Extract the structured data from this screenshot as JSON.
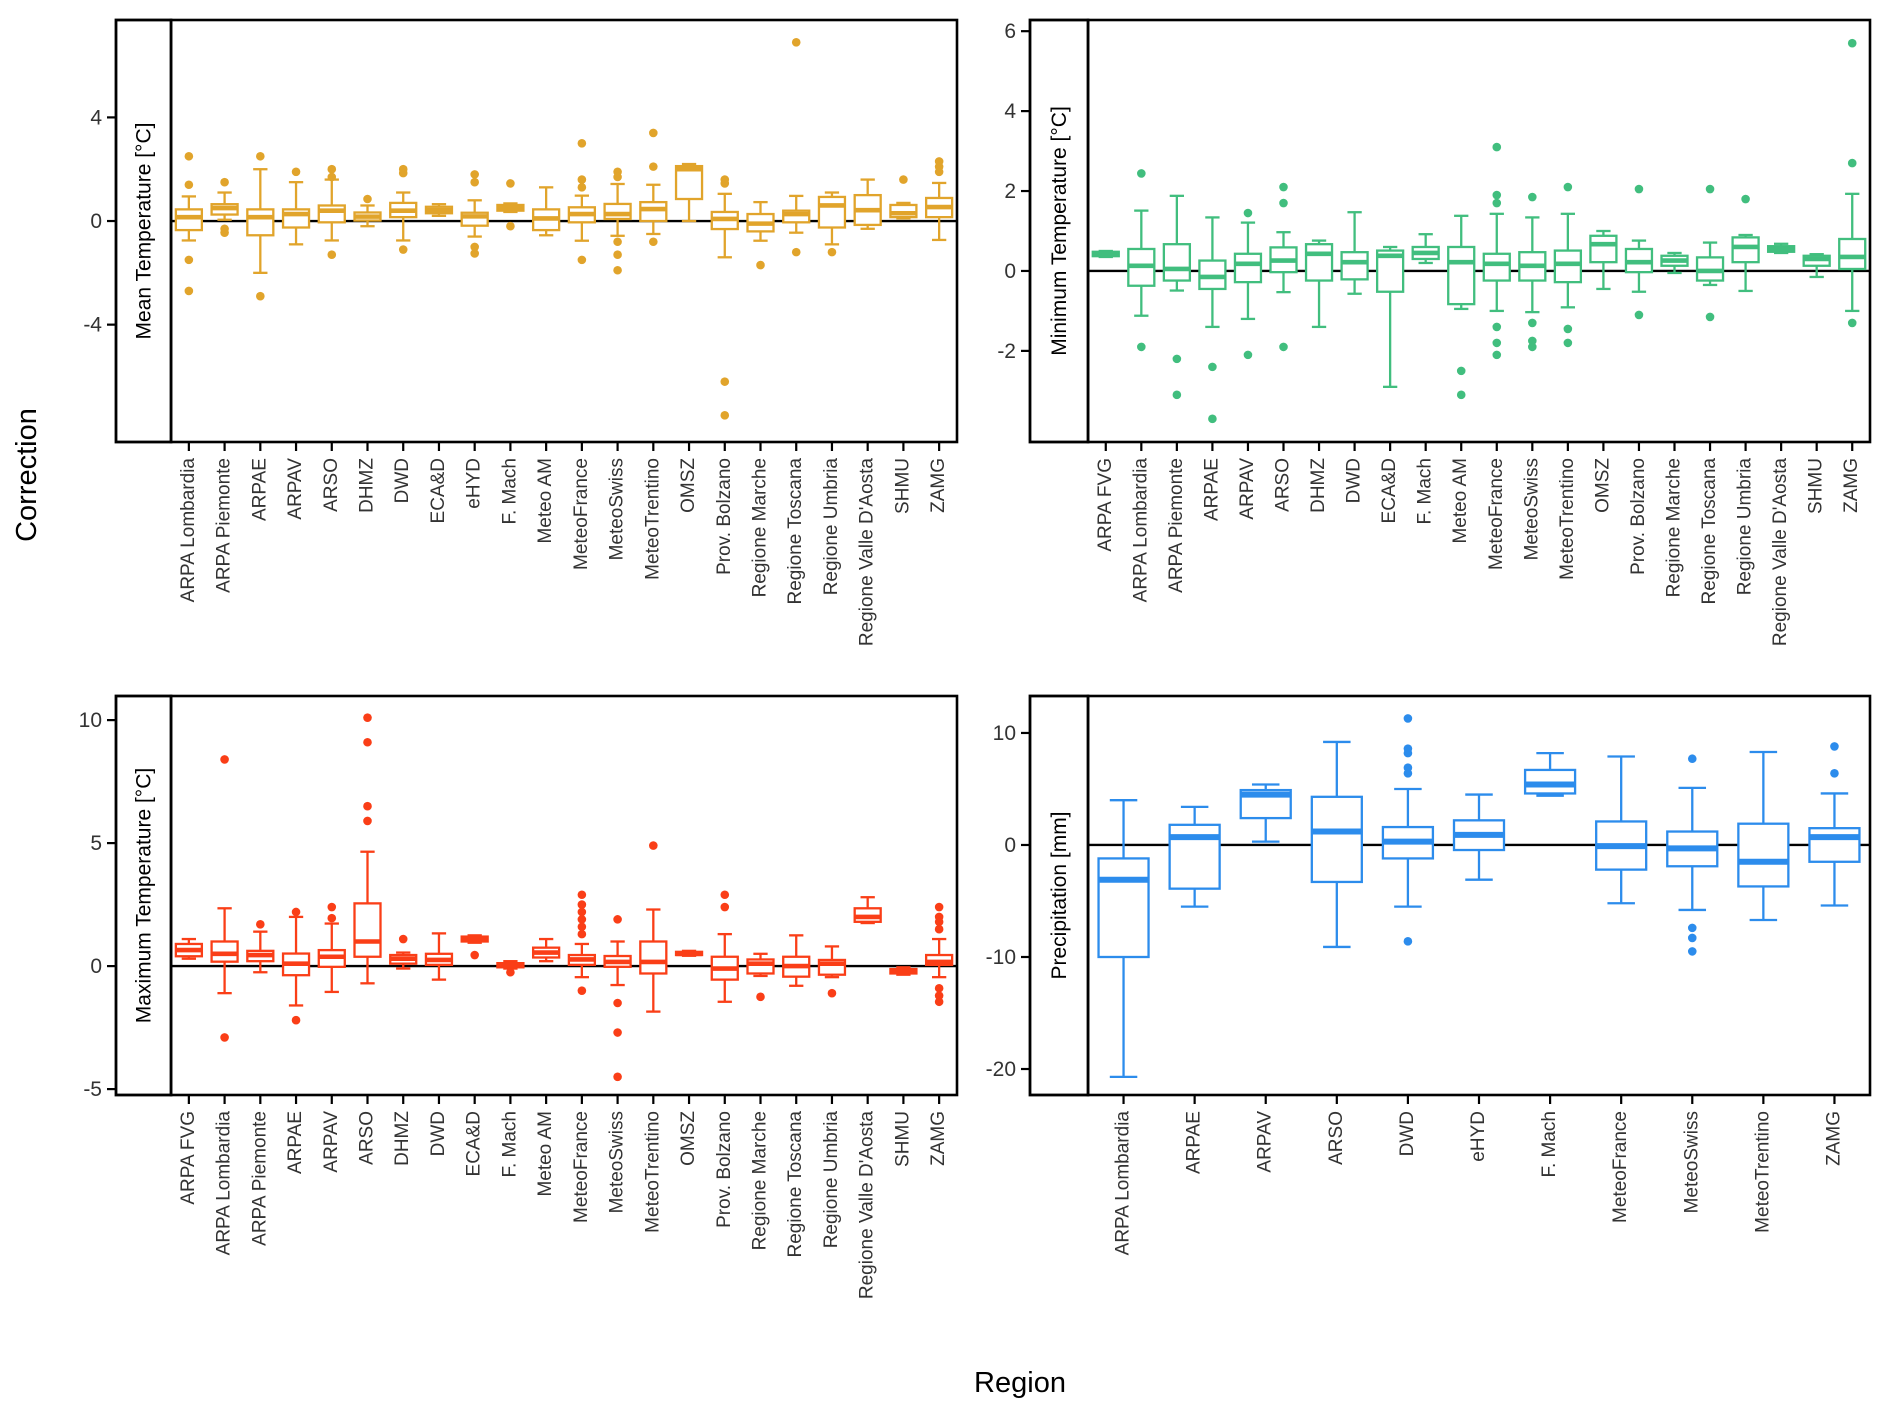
{
  "figure": {
    "y_axis_label": "Correction",
    "x_axis_label": "Region",
    "background": "#ffffff",
    "border_color": "#000000"
  },
  "box_format": [
    "median",
    "q1",
    "q3",
    "whisker_low",
    "whisker_high",
    "outliers"
  ],
  "chart_data": [
    {
      "type": "boxplot",
      "id": "tl",
      "strip_label": "Mean Temperature [°C]",
      "color": "#E1A42B",
      "ylim": [
        -8.53,
        7.76
      ],
      "yticks": [
        4,
        0,
        -4
      ],
      "zero_line": true,
      "legend": "none",
      "grid": false,
      "categories": [
        "ARPA Lombardia",
        "ARPA Piemonte",
        "ARPAE",
        "ARPAV",
        "ARSO",
        "DHMZ",
        "DWD",
        "ECA&D",
        "eHYD",
        "F. Mach",
        "Meteo AM",
        "MeteoFrance",
        "MeteoSwiss",
        "MeteoTrentino",
        "OMSZ",
        "Prov. Bolzano",
        "Regione Marche",
        "Regione Toscana",
        "Regione Umbria",
        "Regione Valle D'Aosta",
        "SHMU",
        "ZAMG"
      ],
      "boxes": [
        [
          0.15,
          -0.35,
          0.45,
          -0.75,
          0.95,
          [
            2.5,
            1.4,
            -1.5,
            -2.7
          ]
        ],
        [
          0.5,
          0.25,
          0.65,
          0.05,
          1.1,
          [
            1.5,
            -0.3,
            -0.45
          ]
        ],
        [
          0.15,
          -0.55,
          0.45,
          -2.0,
          2.0,
          [
            2.5,
            -2.9
          ]
        ],
        [
          0.27,
          -0.25,
          0.45,
          -0.9,
          1.5,
          [
            1.9
          ]
        ],
        [
          0.4,
          -0.05,
          0.6,
          -0.75,
          1.6,
          [
            2.0,
            1.7,
            -1.3
          ]
        ],
        [
          0.17,
          0.02,
          0.33,
          -0.2,
          0.6,
          [
            0.85
          ]
        ],
        [
          0.4,
          0.15,
          0.7,
          -0.75,
          1.1,
          [
            2.0,
            1.85,
            -1.1
          ]
        ],
        [
          0.42,
          0.3,
          0.55,
          0.2,
          0.65,
          []
        ],
        [
          0.18,
          -0.18,
          0.32,
          -0.6,
          0.8,
          [
            1.8,
            1.5,
            -1.0,
            -1.25
          ]
        ],
        [
          0.5,
          0.4,
          0.62,
          0.35,
          0.68,
          [
            1.45,
            -0.2
          ]
        ],
        [
          0.1,
          -0.35,
          0.45,
          -0.55,
          1.3,
          []
        ],
        [
          0.27,
          -0.05,
          0.53,
          -0.76,
          0.98,
          [
            3.0,
            1.6,
            1.3,
            -1.5
          ]
        ],
        [
          0.27,
          0.08,
          0.66,
          -0.57,
          1.43,
          [
            1.9,
            1.7,
            -0.8,
            -1.3,
            -1.9
          ]
        ],
        [
          0.46,
          0.0,
          0.73,
          -0.5,
          1.4,
          [
            3.4,
            2.1,
            -0.8
          ]
        ],
        [
          2.0,
          0.85,
          2.12,
          0.0,
          2.2,
          []
        ],
        [
          0.08,
          -0.31,
          0.35,
          -1.4,
          1.05,
          [
            1.6,
            1.45,
            -6.2,
            -7.5
          ]
        ],
        [
          -0.1,
          -0.4,
          0.27,
          -0.76,
          0.73,
          [
            -1.7
          ]
        ],
        [
          0.27,
          -0.05,
          0.4,
          -0.45,
          0.97,
          [
            6.9,
            -1.2
          ]
        ],
        [
          0.6,
          -0.25,
          0.93,
          -0.9,
          1.1,
          [
            -1.2
          ]
        ],
        [
          0.42,
          -0.15,
          1.0,
          -0.3,
          1.6,
          []
        ],
        [
          0.3,
          0.15,
          0.62,
          0.1,
          0.7,
          [
            1.6
          ]
        ],
        [
          0.54,
          0.15,
          0.89,
          -0.73,
          1.47,
          [
            2.3,
            2.1,
            1.9
          ]
        ]
      ]
    },
    {
      "type": "boxplot",
      "id": "tr",
      "strip_label": "Minimum Temperature [°C]",
      "color": "#41BE7E",
      "ylim": [
        -4.28,
        6.28
      ],
      "yticks": [
        6,
        4,
        2,
        0,
        -2
      ],
      "zero_line": true,
      "legend": "none",
      "grid": false,
      "categories": [
        "ARPA FVG",
        "ARPA Lombardia",
        "ARPA Piemonte",
        "ARPAE",
        "ARPAV",
        "ARSO",
        "DHMZ",
        "DWD",
        "ECA&D",
        "F. Mach",
        "Meteo AM",
        "MeteoFrance",
        "MeteoSwiss",
        "MeteoTrentino",
        "OMSZ",
        "Prov. Bolzano",
        "Regione Marche",
        "Regione Toscana",
        "Regione Umbria",
        "Regione Valle D'Aosta",
        "SHMU",
        "ZAMG"
      ],
      "boxes": [
        [
          0.42,
          0.37,
          0.48,
          0.35,
          0.5,
          []
        ],
        [
          0.13,
          -0.37,
          0.55,
          -1.12,
          1.51,
          [
            2.44,
            -1.9
          ]
        ],
        [
          0.05,
          -0.24,
          0.67,
          -0.49,
          1.88,
          [
            -2.2,
            -3.1
          ]
        ],
        [
          -0.15,
          -0.45,
          0.26,
          -1.4,
          1.34,
          [
            -2.4,
            -3.7
          ]
        ],
        [
          0.18,
          -0.28,
          0.43,
          -1.2,
          1.21,
          [
            1.45,
            -2.1
          ]
        ],
        [
          0.26,
          -0.03,
          0.59,
          -0.53,
          0.97,
          [
            2.1,
            1.7,
            -1.9
          ]
        ],
        [
          0.43,
          -0.24,
          0.67,
          -1.4,
          0.76,
          []
        ],
        [
          0.22,
          -0.21,
          0.47,
          -0.57,
          1.47,
          []
        ],
        [
          0.38,
          -0.52,
          0.51,
          -2.9,
          0.6,
          []
        ],
        [
          0.45,
          0.3,
          0.6,
          0.2,
          0.92,
          []
        ],
        [
          0.22,
          -0.83,
          0.6,
          -0.95,
          1.38,
          [
            -2.5,
            -3.1
          ]
        ],
        [
          0.18,
          -0.24,
          0.43,
          -1.0,
          1.43,
          [
            3.1,
            1.9,
            1.7,
            -1.4,
            -1.8,
            -2.1
          ]
        ],
        [
          0.13,
          -0.24,
          0.47,
          -1.03,
          1.34,
          [
            1.85,
            -1.3,
            -1.75,
            -1.9
          ]
        ],
        [
          0.18,
          -0.28,
          0.51,
          -0.91,
          1.43,
          [
            2.1,
            -1.45,
            -1.8
          ]
        ],
        [
          0.67,
          0.22,
          0.88,
          -0.45,
          1.0,
          []
        ],
        [
          0.22,
          -0.03,
          0.55,
          -0.52,
          0.76,
          [
            2.05,
            -1.1
          ]
        ],
        [
          0.26,
          0.13,
          0.38,
          -0.05,
          0.45,
          []
        ],
        [
          0.0,
          -0.24,
          0.34,
          -0.35,
          0.71,
          [
            2.05,
            -1.15
          ]
        ],
        [
          0.6,
          0.22,
          0.84,
          -0.5,
          0.9,
          [
            1.8
          ]
        ],
        [
          0.55,
          0.48,
          0.62,
          0.45,
          0.68,
          []
        ],
        [
          0.3,
          0.13,
          0.38,
          -0.15,
          0.42,
          []
        ],
        [
          0.35,
          0.05,
          0.8,
          -1.0,
          1.93,
          [
            5.7,
            2.7,
            -1.3
          ]
        ]
      ]
    },
    {
      "type": "boxplot",
      "id": "bl",
      "strip_label": "Maximum Temperature [°C]",
      "color": "#FA3E17",
      "ylim": [
        -5.24,
        10.98
      ],
      "yticks": [
        10,
        5,
        0,
        -5
      ],
      "zero_line": true,
      "legend": "none",
      "grid": false,
      "categories": [
        "ARPA FVG",
        "ARPA Lombardia",
        "ARPA Piemonte",
        "ARPAE",
        "ARPAV",
        "ARSO",
        "DHMZ",
        "DWD",
        "ECA&D",
        "F. Mach",
        "Meteo AM",
        "MeteoFrance",
        "MeteoSwiss",
        "MeteoTrentino",
        "OMSZ",
        "Prov. Bolzano",
        "Regione Marche",
        "Regione Toscana",
        "Regione Umbria",
        "Regione Valle D'Aosta",
        "SHMU",
        "ZAMG"
      ],
      "boxes": [
        [
          0.65,
          0.4,
          0.9,
          0.3,
          1.1,
          []
        ],
        [
          0.5,
          0.18,
          1.0,
          -1.1,
          2.35,
          [
            8.4,
            -2.9
          ]
        ],
        [
          0.45,
          0.2,
          0.62,
          -0.25,
          1.4,
          [
            1.7
          ]
        ],
        [
          0.1,
          -0.37,
          0.51,
          -1.6,
          2.0,
          [
            2.2,
            -2.2
          ]
        ],
        [
          0.38,
          -0.03,
          0.65,
          -1.05,
          1.73,
          [
            2.4,
            1.95
          ]
        ],
        [
          1.0,
          0.38,
          2.55,
          -0.7,
          4.65,
          [
            10.1,
            9.1,
            6.5,
            5.9
          ]
        ],
        [
          0.3,
          0.1,
          0.45,
          -0.1,
          0.55,
          [
            1.1
          ]
        ],
        [
          0.25,
          0.05,
          0.5,
          -0.55,
          1.33,
          []
        ],
        [
          1.1,
          1.0,
          1.2,
          0.95,
          1.25,
          [
            0.45
          ]
        ],
        [
          0.05,
          -0.05,
          0.12,
          -0.1,
          0.2,
          [
            -0.25
          ]
        ],
        [
          0.55,
          0.35,
          0.75,
          0.2,
          1.1,
          []
        ],
        [
          0.27,
          0.05,
          0.45,
          -0.45,
          0.9,
          [
            2.9,
            2.5,
            2.2,
            1.9,
            1.6,
            1.3,
            -1.0
          ]
        ],
        [
          0.17,
          -0.03,
          0.41,
          -0.77,
          1.0,
          [
            1.9,
            -1.5,
            -2.7,
            -4.5
          ]
        ],
        [
          0.17,
          -0.3,
          1.0,
          -1.85,
          2.3,
          [
            4.9
          ]
        ],
        [
          0.5,
          0.45,
          0.58,
          0.42,
          0.62,
          []
        ],
        [
          -0.1,
          -0.55,
          0.38,
          -1.45,
          1.3,
          [
            2.9,
            2.4
          ]
        ],
        [
          0.1,
          -0.3,
          0.27,
          -0.4,
          0.5,
          [
            -1.25
          ]
        ],
        [
          0.0,
          -0.43,
          0.38,
          -0.8,
          1.25,
          []
        ],
        [
          0.1,
          -0.35,
          0.25,
          -0.45,
          0.8,
          [
            -1.1
          ]
        ],
        [
          2.0,
          1.8,
          2.35,
          1.75,
          2.8,
          []
        ],
        [
          -0.2,
          -0.3,
          -0.12,
          -0.35,
          -0.05,
          []
        ],
        [
          0.17,
          0.05,
          0.45,
          -0.45,
          1.1,
          [
            2.4,
            2.0,
            1.8,
            1.5,
            -0.9,
            -1.2,
            -1.45
          ]
        ]
      ]
    },
    {
      "type": "boxplot",
      "id": "br",
      "strip_label": "Precipitation [mm]",
      "color": "#2C8CEC",
      "ylim": [
        -22.32,
        13.3
      ],
      "yticks": [
        10,
        0,
        -10,
        -20
      ],
      "zero_line": true,
      "legend": "none",
      "grid": false,
      "categories": [
        "ARPA Lombardia",
        "ARPAE",
        "ARPAV",
        "ARSO",
        "DWD",
        "eHYD",
        "F. Mach",
        "MeteoFrance",
        "MeteoSwiss",
        "MeteoTrentino",
        "ZAMG"
      ],
      "boxes": [
        [
          -3.1,
          -10.0,
          -1.2,
          -20.7,
          4.0,
          []
        ],
        [
          0.7,
          -3.9,
          1.8,
          -5.5,
          3.4,
          []
        ],
        [
          4.5,
          2.4,
          4.9,
          0.3,
          5.4,
          []
        ],
        [
          1.2,
          -3.3,
          4.3,
          -9.1,
          9.2,
          []
        ],
        [
          0.3,
          -1.2,
          1.6,
          -5.5,
          5.0,
          [
            11.3,
            8.6,
            8.2,
            6.9,
            6.4,
            -8.6
          ]
        ],
        [
          0.9,
          -0.45,
          2.2,
          -3.1,
          4.5,
          []
        ],
        [
          5.4,
          4.6,
          6.7,
          4.4,
          8.2,
          []
        ],
        [
          -0.1,
          -2.2,
          2.1,
          -5.2,
          7.9,
          []
        ],
        [
          -0.3,
          -1.9,
          1.2,
          -5.8,
          5.1,
          [
            7.7,
            -7.4,
            -8.3,
            -9.5
          ]
        ],
        [
          -1.5,
          -3.7,
          1.9,
          -6.7,
          8.3,
          []
        ],
        [
          0.7,
          -1.5,
          1.5,
          -5.4,
          4.6,
          [
            8.8,
            6.4
          ]
        ]
      ]
    }
  ]
}
